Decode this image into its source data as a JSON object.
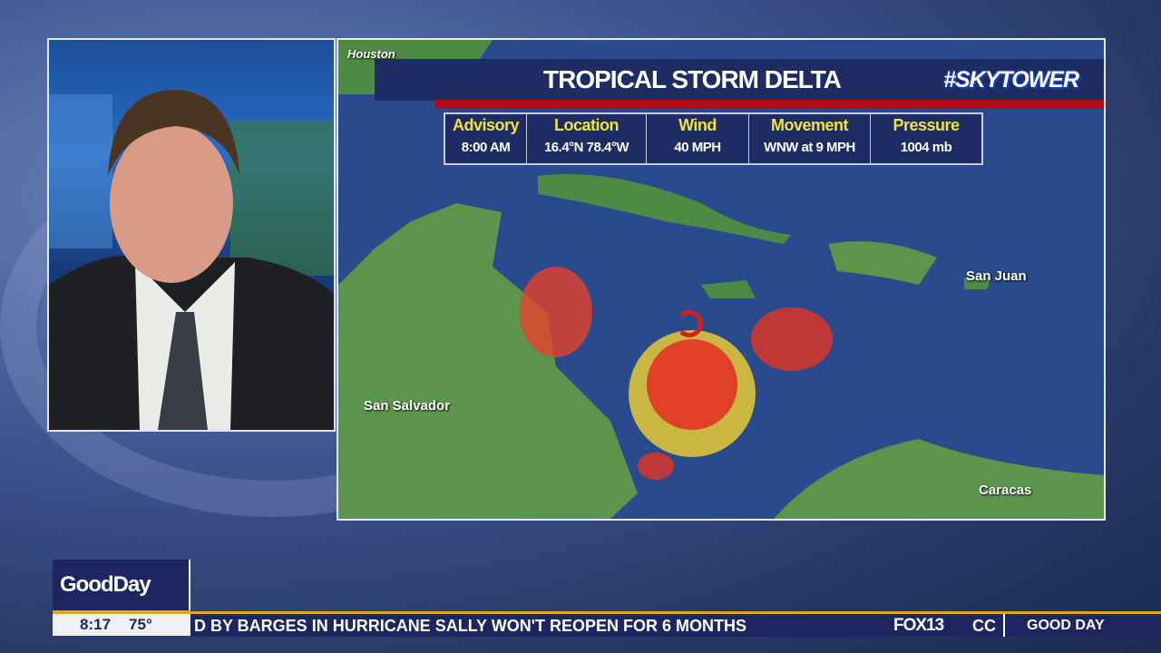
{
  "map": {
    "title": "TROPICAL STORM DELTA",
    "brand": "#SKYTOWER",
    "city_labels": [
      "Houston",
      "San Juan",
      "San Salvador",
      "Caracas"
    ],
    "advisory": [
      {
        "header": "Advisory",
        "value": "8:00 AM"
      },
      {
        "header": "Location",
        "value": "16.4°N  78.4°W"
      },
      {
        "header": "Wind",
        "value": "40 MPH"
      },
      {
        "header": "Movement",
        "value": "WNW at 9 MPH"
      },
      {
        "header": "Pressure",
        "value": "1004 mb"
      }
    ],
    "icons": [
      "hurricane-icon"
    ]
  },
  "lowerthird": {
    "show": "GoodDay",
    "time": "8:17",
    "temp": "75°",
    "ticker": "D BY BARGES IN HURRICANE SALLY WON'T REOPEN FOR 6 MONTHS",
    "station": "FOX13",
    "ticker_next": "CC",
    "segment": "GOOD DAY"
  },
  "colors": {
    "navy": "#1d2c63",
    "red": "#b00d1a",
    "gold": "#e7a51b",
    "header_yellow": "#f1e23c"
  }
}
